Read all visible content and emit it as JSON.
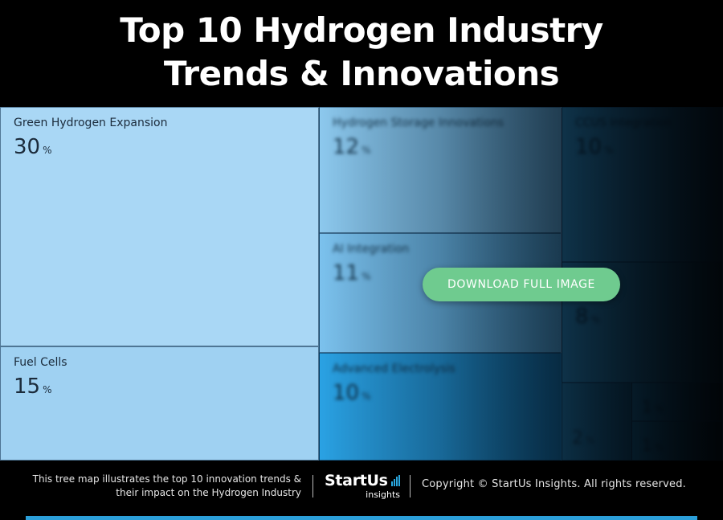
{
  "header": {
    "title_line1": "Top 10 Hydrogen Industry",
    "title_line2": "Trends & Innovations"
  },
  "chart_data": {
    "type": "treemap",
    "unit": "%",
    "items": [
      {
        "name": "Green Hydrogen Expansion",
        "value": 30
      },
      {
        "name": "Fuel Cells",
        "value": 15
      },
      {
        "name": "Hydrogen Storage Innovations",
        "value": 12
      },
      {
        "name": "AI Integration",
        "value": 11
      },
      {
        "name": "Advanced Electrolysis",
        "value": 10
      },
      {
        "name": "CCUS Integration",
        "value": 10
      },
      {
        "name": "",
        "value": 8
      },
      {
        "name": "",
        "value": 2
      },
      {
        "name": "",
        "value": 1
      },
      {
        "name": "",
        "value": 1
      }
    ]
  },
  "cta": {
    "download_label": "DOWNLOAD FULL IMAGE"
  },
  "footer": {
    "description": "This tree map illustrates the top 10 innovation trends & their impact on the Hydrogen Industry",
    "logo_main": "StartUs",
    "logo_sub": "insights",
    "copyright": "Copyright © StartUs Insights. All rights reserved."
  },
  "colors": {
    "accent_button": "#6fcb8f",
    "footer_bar": "#2b9fd9",
    "tile_light": "#a9d7f5"
  }
}
